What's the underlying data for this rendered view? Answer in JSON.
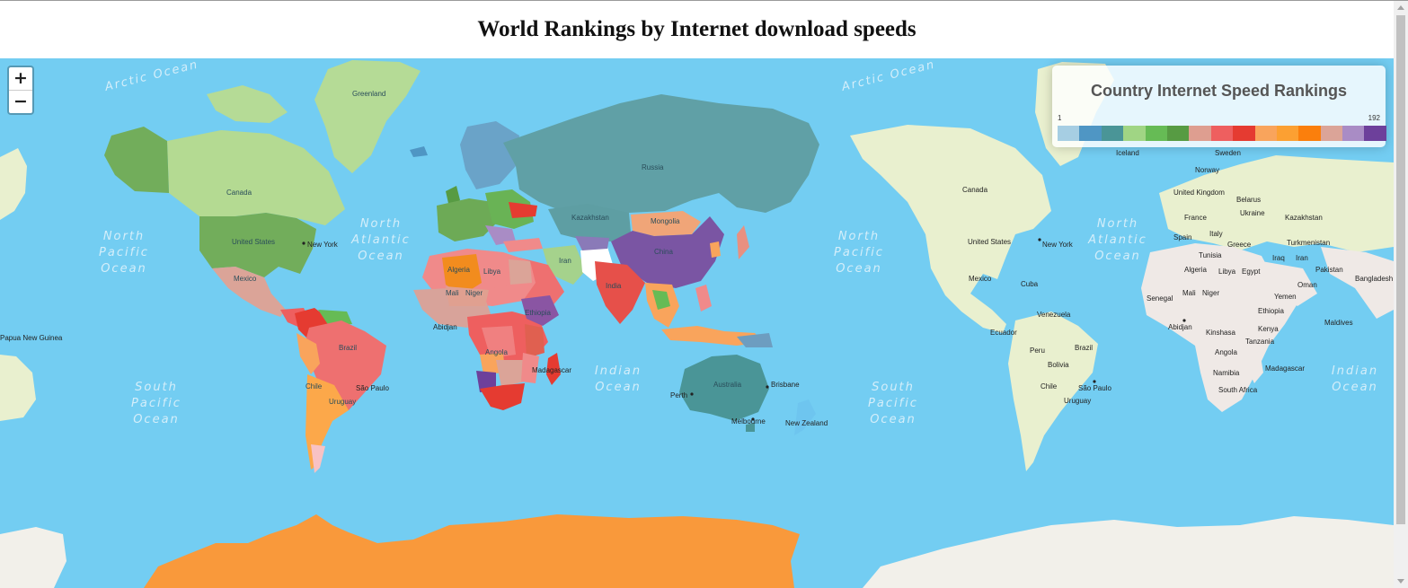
{
  "page": {
    "title": "World Rankings by Internet download speeds"
  },
  "zoom": {
    "in_label": "+",
    "out_label": "−"
  },
  "legend": {
    "title": "Country Internet Speed Rankings",
    "min": "1",
    "max": "192",
    "colors": [
      "#a6cee3",
      "#4f96c4",
      "#4a9597",
      "#a0d584",
      "#66bb55",
      "#579b43",
      "#de9e90",
      "#ee5f5f",
      "#e53b31",
      "#f9a45c",
      "#fca032",
      "#fb7f0c",
      "#dba498",
      "#a98cc5",
      "#6d409b"
    ]
  },
  "ocean_labels": [
    {
      "lines": [
        "Arctic Ocean"
      ]
    },
    {
      "lines": [
        "North",
        "Pacific",
        "Ocean"
      ]
    },
    {
      "lines": [
        "North",
        "Atlantic",
        "Ocean"
      ]
    },
    {
      "lines": [
        "South",
        "Pacific",
        "Ocean"
      ]
    },
    {
      "lines": [
        "Indian",
        "Ocean"
      ]
    },
    {
      "lines": [
        "Arctic Ocean"
      ]
    },
    {
      "lines": [
        "North",
        "Pacific",
        "Ocean"
      ]
    },
    {
      "lines": [
        "North",
        "Atlantic",
        "Ocean"
      ]
    },
    {
      "lines": [
        "South",
        "Pacific",
        "Ocean"
      ]
    },
    {
      "lines": [
        "Indian",
        "Ocean"
      ]
    }
  ],
  "place_labels": [
    "Greenland",
    "Canada",
    "United States",
    "New York",
    "Mexico",
    "Brazil",
    "São Paulo",
    "Chile",
    "Uruguay",
    "Algeria",
    "Libya",
    "Mali",
    "Niger",
    "Ethiopia",
    "Angola",
    "Madagascar",
    "Abidjan",
    "Russia",
    "Kazakhstan",
    "Mongolia",
    "China",
    "Iran",
    "India",
    "Australia",
    "Perth",
    "Brisbane",
    "Melbourne",
    "New Zealand",
    "Papua New Guinea",
    "Iceland",
    "Sweden",
    "Norway",
    "United Kingdom",
    "Belarus",
    "Ukraine",
    "France",
    "Italy",
    "Spain",
    "Greece",
    "Turkmenistan",
    "Tunisia",
    "Iraq",
    "Pakistan",
    "Bangladesh",
    "Oman",
    "Senegal",
    "Yemen",
    "Venezuela",
    "Ecuador",
    "Peru",
    "Bolivia",
    "Kinshasa",
    "Tanzania",
    "Kenya",
    "Egypt",
    "Namibia",
    "South Africa",
    "Maldives",
    "Cuba"
  ]
}
